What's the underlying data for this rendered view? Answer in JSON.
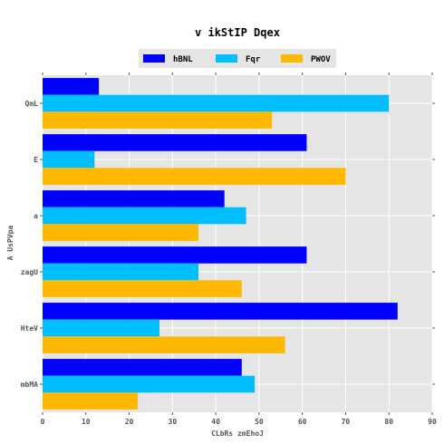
{
  "chart_data": {
    "type": "bar",
    "orientation": "horizontal",
    "title": "v ikStIP Dqex",
    "xlabel": "CLbRs zmEhoJ",
    "ylabel": "A UsPVpa",
    "categories": [
      "QmL",
      "E",
      "a",
      "zagU",
      "HteV",
      "mbMA"
    ],
    "series": [
      {
        "name": "hBNL",
        "color": "#0000ff",
        "values": [
          13,
          61,
          42,
          61,
          82,
          46
        ]
      },
      {
        "name": "Fqr",
        "color": "#00bfff",
        "values": [
          80,
          12,
          47,
          36,
          27,
          49
        ]
      },
      {
        "name": "PWOV",
        "color": "#ffb800",
        "values": [
          53,
          70,
          36,
          46,
          56,
          22
        ]
      }
    ],
    "xlim": [
      0,
      90
    ],
    "xticks": [
      0,
      10,
      20,
      30,
      40,
      50,
      60,
      70,
      80,
      90
    ],
    "grid": true,
    "legend_position": "top-center",
    "background": "#e5e5e5",
    "grid_color": "#ffffff"
  }
}
